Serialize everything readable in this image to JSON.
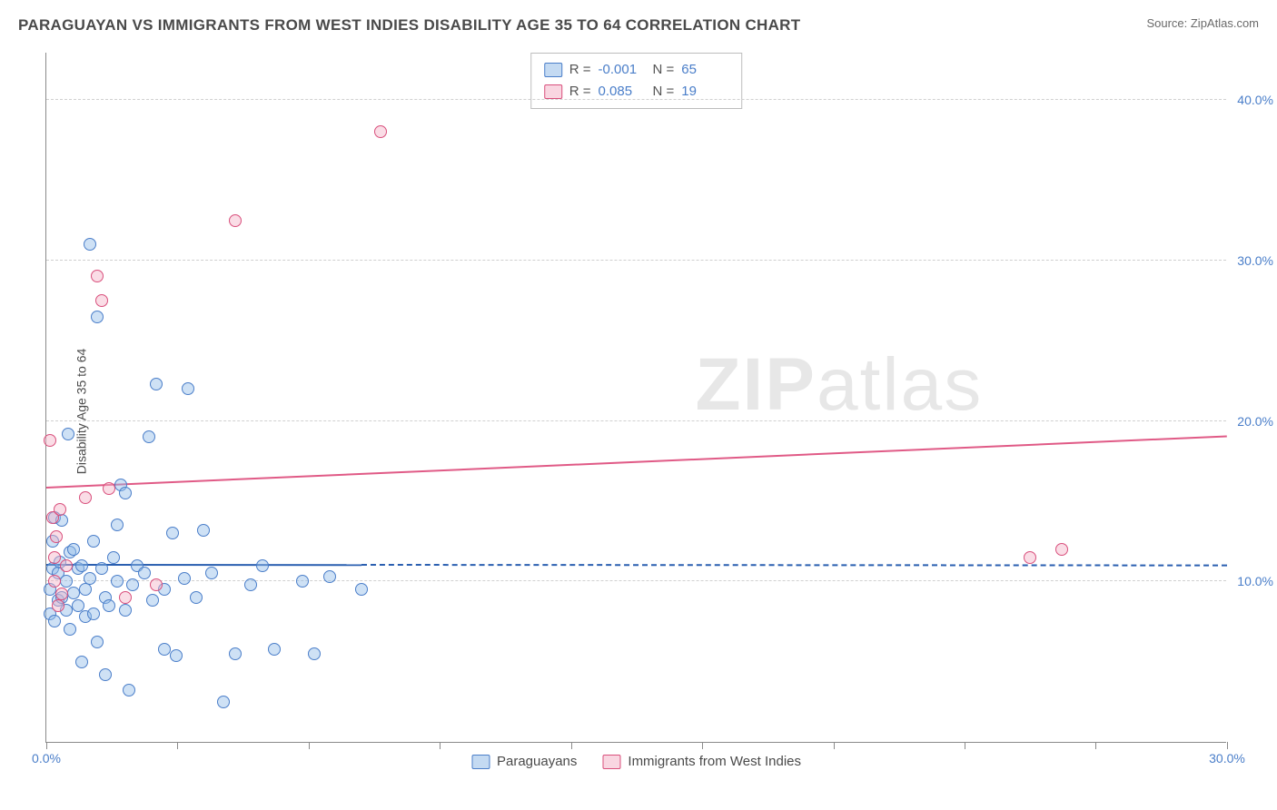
{
  "header": {
    "title": "PARAGUAYAN VS IMMIGRANTS FROM WEST INDIES DISABILITY AGE 35 TO 64 CORRELATION CHART",
    "source": "Source: ZipAtlas.com"
  },
  "watermark": {
    "zip": "ZIP",
    "atlas": "atlas"
  },
  "chart": {
    "type": "scatter",
    "y_axis_label": "Disability Age 35 to 64",
    "background_color": "#ffffff",
    "grid_color": "#d0d0d0",
    "axis_color": "#8a8a8a",
    "label_color": "#4a7ec9",
    "xlim": [
      0,
      30
    ],
    "ylim": [
      0,
      43
    ],
    "x_ticks": [
      0,
      3.33,
      6.66,
      10,
      13.33,
      16.66,
      20,
      23.33,
      26.66,
      30
    ],
    "x_tick_labels": {
      "0": "0.0%",
      "30": "30.0%"
    },
    "y_gridlines": [
      10,
      20,
      30,
      40
    ],
    "y_tick_labels": {
      "10": "10.0%",
      "20": "20.0%",
      "30": "30.0%",
      "40": "40.0%"
    },
    "point_radius": 7,
    "series": [
      {
        "name": "Paraguayans",
        "color_fill": "rgba(147,188,232,0.45)",
        "color_stroke": "#4a7ec9",
        "class": "pt-blue",
        "R": "-0.001",
        "N": "65",
        "trend": {
          "y_at_x0": 11.0,
          "y_at_xmax": 10.95,
          "solid_until_x": 8,
          "color": "#2a5fb0"
        },
        "points": [
          [
            0.1,
            8.0
          ],
          [
            0.1,
            9.5
          ],
          [
            0.15,
            10.8
          ],
          [
            0.15,
            12.5
          ],
          [
            0.2,
            14.0
          ],
          [
            0.2,
            7.5
          ],
          [
            0.3,
            10.5
          ],
          [
            0.3,
            8.8
          ],
          [
            0.35,
            11.2
          ],
          [
            0.4,
            9.0
          ],
          [
            0.4,
            13.8
          ],
          [
            0.5,
            8.2
          ],
          [
            0.5,
            10.0
          ],
          [
            0.55,
            19.2
          ],
          [
            0.6,
            11.8
          ],
          [
            0.6,
            7.0
          ],
          [
            0.7,
            9.3
          ],
          [
            0.7,
            12.0
          ],
          [
            0.8,
            8.5
          ],
          [
            0.8,
            10.8
          ],
          [
            0.9,
            5.0
          ],
          [
            0.9,
            11.0
          ],
          [
            1.0,
            9.5
          ],
          [
            1.0,
            7.8
          ],
          [
            1.1,
            10.2
          ],
          [
            1.1,
            31.0
          ],
          [
            1.2,
            8.0
          ],
          [
            1.2,
            12.5
          ],
          [
            1.3,
            6.2
          ],
          [
            1.3,
            26.5
          ],
          [
            1.4,
            10.8
          ],
          [
            1.5,
            4.2
          ],
          [
            1.5,
            9.0
          ],
          [
            1.6,
            8.5
          ],
          [
            1.7,
            11.5
          ],
          [
            1.8,
            13.5
          ],
          [
            1.8,
            10.0
          ],
          [
            1.9,
            16.0
          ],
          [
            2.0,
            15.5
          ],
          [
            2.0,
            8.2
          ],
          [
            2.1,
            3.2
          ],
          [
            2.2,
            9.8
          ],
          [
            2.3,
            11.0
          ],
          [
            2.5,
            10.5
          ],
          [
            2.6,
            19.0
          ],
          [
            2.7,
            8.8
          ],
          [
            2.8,
            22.3
          ],
          [
            3.0,
            9.5
          ],
          [
            3.2,
            13.0
          ],
          [
            3.3,
            5.4
          ],
          [
            3.5,
            10.2
          ],
          [
            3.6,
            22.0
          ],
          [
            3.8,
            9.0
          ],
          [
            4.0,
            13.2
          ],
          [
            4.2,
            10.5
          ],
          [
            4.5,
            2.5
          ],
          [
            4.8,
            5.5
          ],
          [
            5.2,
            9.8
          ],
          [
            5.5,
            11.0
          ],
          [
            5.8,
            5.8
          ],
          [
            6.5,
            10.0
          ],
          [
            6.8,
            5.5
          ],
          [
            7.2,
            10.3
          ],
          [
            8.0,
            9.5
          ],
          [
            3.0,
            5.8
          ]
        ]
      },
      {
        "name": "Immigrants from West Indies",
        "color_fill": "rgba(244,180,200,0.45)",
        "color_stroke": "#d94f7c",
        "class": "pt-pink",
        "R": "0.085",
        "N": "19",
        "trend": {
          "y_at_x0": 15.8,
          "y_at_xmax": 19.0,
          "color": "#e05a86"
        },
        "points": [
          [
            0.1,
            18.8
          ],
          [
            0.15,
            14.0
          ],
          [
            0.2,
            11.5
          ],
          [
            0.2,
            10.0
          ],
          [
            0.25,
            12.8
          ],
          [
            0.3,
            8.5
          ],
          [
            0.35,
            14.5
          ],
          [
            0.4,
            9.2
          ],
          [
            0.5,
            11.0
          ],
          [
            1.0,
            15.2
          ],
          [
            1.3,
            29.0
          ],
          [
            1.4,
            27.5
          ],
          [
            1.6,
            15.8
          ],
          [
            2.0,
            9.0
          ],
          [
            2.8,
            9.8
          ],
          [
            4.8,
            32.5
          ],
          [
            8.5,
            38.0
          ],
          [
            25.0,
            11.5
          ],
          [
            25.8,
            12.0
          ]
        ]
      }
    ],
    "legend_top": {
      "rows": [
        {
          "swatch": "sw-blue",
          "r_label": "R =",
          "r_value": "-0.001",
          "n_label": "N =",
          "n_value": "65"
        },
        {
          "swatch": "sw-pink",
          "r_label": "R =",
          "r_value": "0.085",
          "n_label": "N =",
          "n_value": "19"
        }
      ]
    },
    "legend_bottom": {
      "items": [
        {
          "swatch": "sw-blue",
          "label": "Paraguayans"
        },
        {
          "swatch": "sw-pink",
          "label": "Immigrants from West Indies"
        }
      ]
    }
  }
}
